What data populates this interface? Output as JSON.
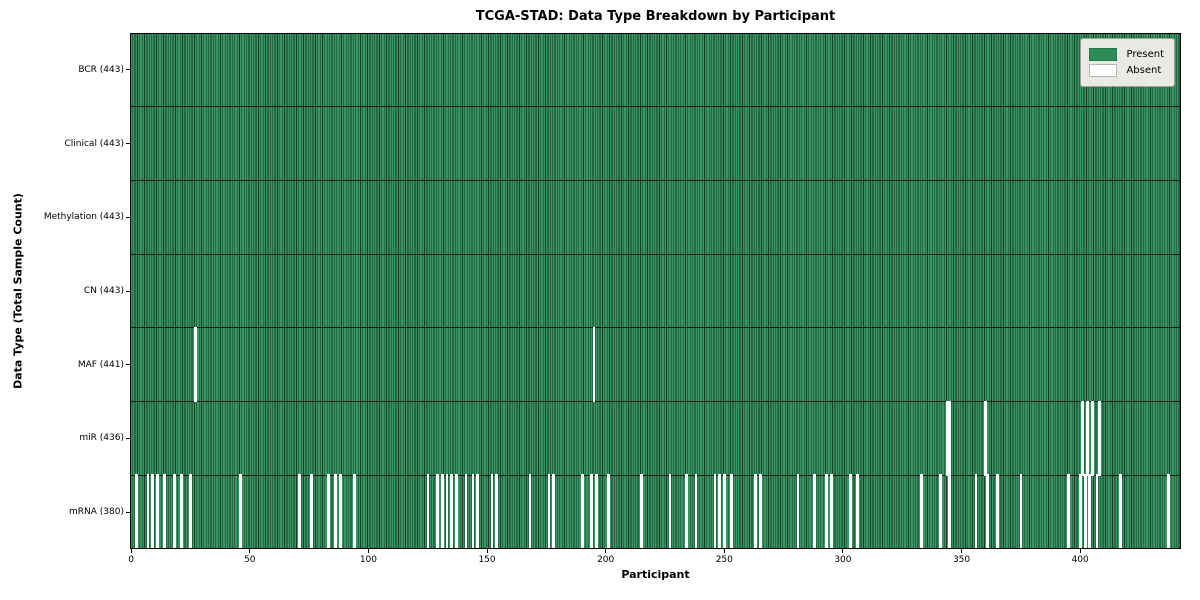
{
  "figure": {
    "title": "TCGA-STAD: Data Type Breakdown by Participant",
    "xlabel": "Participant",
    "ylabel": "Data Type (Total Sample Count)"
  },
  "legend": {
    "position": "upper right",
    "items": [
      {
        "label": "Present",
        "color": "#2e8b57"
      },
      {
        "label": "Absent",
        "color": "#ffffff"
      }
    ]
  },
  "chart_data": {
    "type": "heatmap",
    "title": "TCGA-STAD: Data Type Breakdown by Participant",
    "xlabel": "Participant",
    "ylabel": "Data Type (Total Sample Count)",
    "legend_position": "upper right",
    "grid": false,
    "n_participants": 443,
    "xlim": [
      -0.5,
      442.5
    ],
    "x_ticks": [
      0,
      50,
      100,
      150,
      200,
      250,
      300,
      350,
      400
    ],
    "colors": {
      "present": "#2e8b57",
      "present_light": "#389663",
      "bar_edge": "#143c26",
      "absent": "#ffffff",
      "row_divider": "#0d1a12",
      "spine": "#000000",
      "legend_bg": "#e7ebe3",
      "legend_border": "#9aa09a"
    },
    "rows": [
      {
        "label": "BCR",
        "total": 443,
        "tick_label": "BCR (443)",
        "absent_participants": []
      },
      {
        "label": "Clinical",
        "total": 443,
        "tick_label": "Clinical (443)",
        "absent_participants": []
      },
      {
        "label": "Methylation",
        "total": 443,
        "tick_label": "Methylation (443)",
        "absent_participants": []
      },
      {
        "label": "CN",
        "total": 443,
        "tick_label": "CN (443)",
        "absent_participants": []
      },
      {
        "label": "MAF",
        "total": 441,
        "tick_label": "MAF (441)",
        "absent_participants": [
          27,
          195
        ]
      },
      {
        "label": "miR",
        "total": 436,
        "tick_label": "miR (436)",
        "absent_participants": [
          344,
          345,
          360,
          401,
          403,
          405,
          408
        ]
      },
      {
        "label": "mRNA",
        "total": 380,
        "tick_label": "mRNA (380)",
        "absent_participants": [
          2,
          7,
          9,
          11,
          14,
          18,
          21,
          25,
          46,
          71,
          76,
          83,
          86,
          88,
          94,
          125,
          129,
          131,
          133,
          135,
          137,
          141,
          144,
          146,
          152,
          154,
          168,
          176,
          178,
          190,
          194,
          196,
          201,
          215,
          227,
          234,
          238,
          246,
          248,
          250,
          253,
          263,
          265,
          281,
          288,
          293,
          295,
          303,
          306,
          333,
          341,
          345,
          356,
          361,
          365,
          375,
          395,
          400,
          402,
          404,
          407,
          417,
          437
        ]
      }
    ]
  }
}
